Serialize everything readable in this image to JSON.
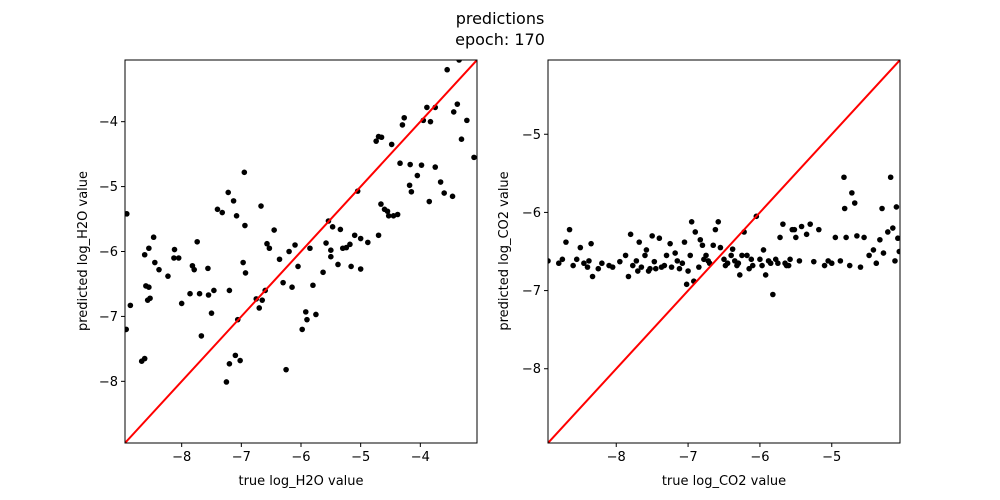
{
  "figure": {
    "title_line1": "predictions",
    "title_line2": "epoch: 170"
  },
  "colors": {
    "points": "#000000",
    "identity_line": "#ff0000",
    "axes": "#000000",
    "background": "#ffffff"
  },
  "chart_data": [
    {
      "type": "scatter",
      "title": "",
      "xlabel": "true log_H2O value",
      "ylabel": "predicted log_H2O value",
      "xlim": [
        -8.95,
        -3.05
      ],
      "ylim": [
        -8.95,
        -3.05
      ],
      "xticks": [
        -8,
        -7,
        -6,
        -5,
        -4
      ],
      "yticks": [
        -8,
        -7,
        -6,
        -5,
        -4
      ],
      "xtick_labels": [
        "−8",
        "−7",
        "−6",
        "−5",
        "−4"
      ],
      "ytick_labels": [
        "−8",
        "−7",
        "−6",
        "−5",
        "−4"
      ],
      "grid": false,
      "reference_line": {
        "type": "identity",
        "color": "#ff0000"
      },
      "points": [
        [
          -8.92,
          -5.42
        ],
        [
          -8.86,
          -6.83
        ],
        [
          -8.93,
          -7.2
        ],
        [
          -8.67,
          -7.69
        ],
        [
          -8.62,
          -7.65
        ],
        [
          -8.6,
          -6.53
        ],
        [
          -8.55,
          -6.55
        ],
        [
          -8.57,
          -6.75
        ],
        [
          -8.53,
          -6.72
        ],
        [
          -8.62,
          -6.05
        ],
        [
          -8.55,
          -5.95
        ],
        [
          -8.47,
          -5.78
        ],
        [
          -8.45,
          -6.17
        ],
        [
          -8.38,
          -6.28
        ],
        [
          -8.23,
          -6.38
        ],
        [
          -8.12,
          -5.97
        ],
        [
          -8.13,
          -6.1
        ],
        [
          -8.05,
          -6.1
        ],
        [
          -8.0,
          -6.8
        ],
        [
          -7.86,
          -6.65
        ],
        [
          -7.82,
          -6.22
        ],
        [
          -7.79,
          -6.28
        ],
        [
          -7.74,
          -5.85
        ],
        [
          -7.7,
          -6.65
        ],
        [
          -7.67,
          -7.3
        ],
        [
          -7.56,
          -6.26
        ],
        [
          -7.55,
          -6.67
        ],
        [
          -7.46,
          -6.6
        ],
        [
          -7.5,
          -6.95
        ],
        [
          -7.4,
          -5.35
        ],
        [
          -7.32,
          -5.4
        ],
        [
          -7.25,
          -8.01
        ],
        [
          -7.22,
          -5.09
        ],
        [
          -7.2,
          -7.73
        ],
        [
          -7.2,
          -6.6
        ],
        [
          -7.13,
          -5.22
        ],
        [
          -7.08,
          -5.45
        ],
        [
          -7.1,
          -7.6
        ],
        [
          -7.06,
          -7.05
        ],
        [
          -7.02,
          -7.68
        ],
        [
          -6.97,
          -6.17
        ],
        [
          -6.94,
          -5.6
        ],
        [
          -6.93,
          -6.33
        ],
        [
          -6.95,
          -4.78
        ],
        [
          -6.75,
          -6.73
        ],
        [
          -6.7,
          -6.87
        ],
        [
          -6.67,
          -5.3
        ],
        [
          -6.65,
          -6.75
        ],
        [
          -6.6,
          -6.6
        ],
        [
          -6.57,
          -5.88
        ],
        [
          -6.53,
          -5.95
        ],
        [
          -6.45,
          -5.67
        ],
        [
          -6.36,
          -6.12
        ],
        [
          -6.3,
          -6.48
        ],
        [
          -6.25,
          -7.82
        ],
        [
          -6.2,
          -6.0
        ],
        [
          -6.15,
          -6.55
        ],
        [
          -6.1,
          -5.9
        ],
        [
          -6.05,
          -6.23
        ],
        [
          -5.98,
          -7.2
        ],
        [
          -5.92,
          -6.93
        ],
        [
          -5.9,
          -7.05
        ],
        [
          -5.85,
          -5.95
        ],
        [
          -5.8,
          -6.52
        ],
        [
          -5.75,
          -6.97
        ],
        [
          -5.63,
          -6.32
        ],
        [
          -5.58,
          -5.87
        ],
        [
          -5.54,
          -5.53
        ],
        [
          -5.5,
          -5.98
        ],
        [
          -5.5,
          -6.08
        ],
        [
          -5.47,
          -5.62
        ],
        [
          -5.38,
          -6.2
        ],
        [
          -5.34,
          -5.66
        ],
        [
          -5.3,
          -5.95
        ],
        [
          -5.24,
          -5.94
        ],
        [
          -5.18,
          -5.89
        ],
        [
          -5.16,
          -6.23
        ],
        [
          -5.1,
          -5.75
        ],
        [
          -5.05,
          -5.07
        ],
        [
          -5.0,
          -5.8
        ],
        [
          -5.0,
          -6.27
        ],
        [
          -4.88,
          -5.86
        ],
        [
          -4.74,
          -4.3
        ],
        [
          -4.7,
          -4.23
        ],
        [
          -4.65,
          -4.24
        ],
        [
          -4.7,
          -5.75
        ],
        [
          -4.66,
          -5.27
        ],
        [
          -4.6,
          -5.35
        ],
        [
          -4.55,
          -5.38
        ],
        [
          -4.53,
          -5.45
        ],
        [
          -4.48,
          -4.35
        ],
        [
          -4.45,
          -5.45
        ],
        [
          -4.38,
          -5.43
        ],
        [
          -4.34,
          -4.64
        ],
        [
          -4.3,
          -4.05
        ],
        [
          -4.27,
          -3.94
        ],
        [
          -4.18,
          -4.98
        ],
        [
          -4.17,
          -4.66
        ],
        [
          -4.15,
          -5.08
        ],
        [
          -4.05,
          -4.83
        ],
        [
          -3.98,
          -4.67
        ],
        [
          -3.95,
          -3.98
        ],
        [
          -3.89,
          -3.78
        ],
        [
          -3.85,
          -5.23
        ],
        [
          -3.83,
          -4.0
        ],
        [
          -3.75,
          -3.78
        ],
        [
          -3.75,
          -4.7
        ],
        [
          -3.66,
          -4.93
        ],
        [
          -3.6,
          -5.1
        ],
        [
          -3.55,
          -3.2
        ],
        [
          -3.46,
          -5.15
        ],
        [
          -3.44,
          -3.85
        ],
        [
          -3.38,
          -3.73
        ],
        [
          -3.35,
          -3.05
        ],
        [
          -3.31,
          -4.27
        ],
        [
          -3.22,
          -3.98
        ],
        [
          -3.1,
          -4.55
        ]
      ]
    },
    {
      "type": "scatter",
      "title": "",
      "xlabel": "true log_CO2 value",
      "ylabel": "predicted log_CO2 value",
      "xlim": [
        -8.95,
        -4.05
      ],
      "ylim": [
        -8.95,
        -4.05
      ],
      "xticks": [
        -8,
        -7,
        -6,
        -5
      ],
      "yticks": [
        -8,
        -7,
        -6,
        -5
      ],
      "xtick_labels": [
        "−8",
        "−7",
        "−6",
        "−5"
      ],
      "ytick_labels": [
        "−8",
        "−7",
        "−6",
        "−5"
      ],
      "grid": false,
      "reference_line": {
        "type": "identity",
        "color": "#ff0000"
      },
      "points": [
        [
          -8.95,
          -6.62
        ],
        [
          -8.8,
          -6.65
        ],
        [
          -8.75,
          -6.6
        ],
        [
          -8.7,
          -6.38
        ],
        [
          -8.65,
          -6.22
        ],
        [
          -8.6,
          -6.68
        ],
        [
          -8.55,
          -6.6
        ],
        [
          -8.5,
          -6.45
        ],
        [
          -8.45,
          -6.65
        ],
        [
          -8.4,
          -6.7
        ],
        [
          -8.38,
          -6.62
        ],
        [
          -8.35,
          -6.4
        ],
        [
          -8.33,
          -6.82
        ],
        [
          -8.25,
          -6.72
        ],
        [
          -8.2,
          -6.65
        ],
        [
          -8.1,
          -6.68
        ],
        [
          -8.05,
          -6.7
        ],
        [
          -7.95,
          -6.63
        ],
        [
          -7.87,
          -6.55
        ],
        [
          -7.83,
          -6.82
        ],
        [
          -7.8,
          -6.28
        ],
        [
          -7.77,
          -6.68
        ],
        [
          -7.72,
          -6.62
        ],
        [
          -7.7,
          -6.75
        ],
        [
          -7.68,
          -6.38
        ],
        [
          -7.65,
          -6.7
        ],
        [
          -7.6,
          -6.55
        ],
        [
          -7.58,
          -6.48
        ],
        [
          -7.55,
          -6.75
        ],
        [
          -7.53,
          -6.72
        ],
        [
          -7.5,
          -6.3
        ],
        [
          -7.47,
          -6.63
        ],
        [
          -7.45,
          -6.72
        ],
        [
          -7.4,
          -6.33
        ],
        [
          -7.37,
          -6.7
        ],
        [
          -7.33,
          -6.68
        ],
        [
          -7.3,
          -6.55
        ],
        [
          -7.25,
          -6.4
        ],
        [
          -7.23,
          -6.7
        ],
        [
          -7.18,
          -6.52
        ],
        [
          -7.15,
          -6.62
        ],
        [
          -7.12,
          -6.72
        ],
        [
          -7.08,
          -6.65
        ],
        [
          -7.05,
          -6.38
        ],
        [
          -7.02,
          -6.92
        ],
        [
          -7.0,
          -6.75
        ],
        [
          -6.97,
          -6.55
        ],
        [
          -6.95,
          -6.12
        ],
        [
          -6.92,
          -6.88
        ],
        [
          -6.9,
          -6.25
        ],
        [
          -6.85,
          -6.7
        ],
        [
          -6.83,
          -6.35
        ],
        [
          -6.8,
          -6.42
        ],
        [
          -6.78,
          -6.6
        ],
        [
          -6.75,
          -6.55
        ],
        [
          -6.72,
          -6.62
        ],
        [
          -6.7,
          -6.65
        ],
        [
          -6.65,
          -6.42
        ],
        [
          -6.62,
          -6.22
        ],
        [
          -6.58,
          -6.12
        ],
        [
          -6.55,
          -6.45
        ],
        [
          -6.5,
          -6.6
        ],
        [
          -6.48,
          -6.68
        ],
        [
          -6.45,
          -6.65
        ],
        [
          -6.4,
          -6.55
        ],
        [
          -6.38,
          -6.47
        ],
        [
          -6.35,
          -6.62
        ],
        [
          -6.32,
          -6.68
        ],
        [
          -6.3,
          -6.65
        ],
        [
          -6.28,
          -6.8
        ],
        [
          -6.25,
          -6.55
        ],
        [
          -6.22,
          -6.25
        ],
        [
          -6.18,
          -6.55
        ],
        [
          -6.15,
          -6.72
        ],
        [
          -6.12,
          -6.6
        ],
        [
          -6.1,
          -6.68
        ],
        [
          -6.05,
          -6.05
        ],
        [
          -6.0,
          -6.6
        ],
        [
          -5.97,
          -6.68
        ],
        [
          -5.95,
          -6.48
        ],
        [
          -5.92,
          -6.8
        ],
        [
          -5.88,
          -6.62
        ],
        [
          -5.85,
          -6.65
        ],
        [
          -5.82,
          -7.05
        ],
        [
          -5.78,
          -6.6
        ],
        [
          -5.75,
          -6.65
        ],
        [
          -5.72,
          -6.32
        ],
        [
          -5.68,
          -6.15
        ],
        [
          -5.65,
          -6.65
        ],
        [
          -5.63,
          -6.68
        ],
        [
          -5.6,
          -6.68
        ],
        [
          -5.58,
          -6.6
        ],
        [
          -5.55,
          -6.22
        ],
        [
          -5.52,
          -6.22
        ],
        [
          -5.5,
          -6.32
        ],
        [
          -5.45,
          -6.62
        ],
        [
          -5.42,
          -6.18
        ],
        [
          -5.35,
          -6.28
        ],
        [
          -5.3,
          -6.15
        ],
        [
          -5.25,
          -6.63
        ],
        [
          -5.18,
          -6.22
        ],
        [
          -5.1,
          -6.68
        ],
        [
          -5.05,
          -6.62
        ],
        [
          -5.0,
          -6.65
        ],
        [
          -4.95,
          -6.32
        ],
        [
          -4.88,
          -6.62
        ],
        [
          -4.83,
          -5.55
        ],
        [
          -4.82,
          -5.95
        ],
        [
          -4.8,
          -6.32
        ],
        [
          -4.75,
          -6.68
        ],
        [
          -4.72,
          -5.75
        ],
        [
          -4.68,
          -5.88
        ],
        [
          -4.65,
          -6.3
        ],
        [
          -4.6,
          -6.7
        ],
        [
          -4.55,
          -6.32
        ],
        [
          -4.48,
          -6.55
        ],
        [
          -4.42,
          -6.48
        ],
        [
          -4.38,
          -6.65
        ],
        [
          -4.33,
          -6.35
        ],
        [
          -4.3,
          -5.95
        ],
        [
          -4.28,
          -6.52
        ],
        [
          -4.22,
          -6.25
        ],
        [
          -4.18,
          -5.55
        ],
        [
          -4.15,
          -6.2
        ],
        [
          -4.12,
          -6.62
        ],
        [
          -4.08,
          -6.33
        ],
        [
          -4.1,
          -5.93
        ],
        [
          -4.06,
          -6.5
        ]
      ]
    }
  ]
}
